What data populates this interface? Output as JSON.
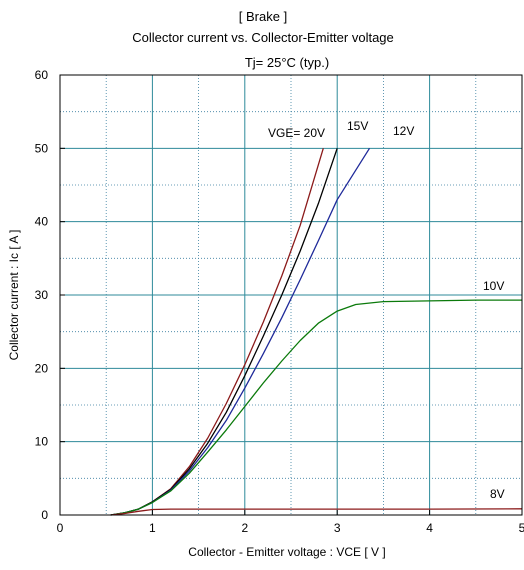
{
  "chart_data": {
    "type": "line",
    "title_lines": [
      "[ Brake ]",
      "Collector current  vs.  Collector-Emitter voltage"
    ],
    "condition": "Tj= 25°C  (typ.)",
    "xlabel": "Collector - Emitter voltage  :  VCE  [ V ]",
    "ylabel": "Collector current  :  Ic  [ A ]",
    "xlim": [
      0,
      5
    ],
    "ylim": [
      0,
      60
    ],
    "x_ticks": [
      "0",
      "1",
      "2",
      "3",
      "4",
      "5"
    ],
    "y_ticks": [
      "0",
      "10",
      "20",
      "30",
      "40",
      "50",
      "60"
    ],
    "grid": true,
    "series": [
      {
        "name": "VGE= 20V",
        "color": "#8b1a1a",
        "points": [
          [
            0.55,
            0
          ],
          [
            0.7,
            0.3
          ],
          [
            0.85,
            0.8
          ],
          [
            1.0,
            1.8
          ],
          [
            1.2,
            3.6
          ],
          [
            1.4,
            6.6
          ],
          [
            1.6,
            10.5
          ],
          [
            1.8,
            15.2
          ],
          [
            2.0,
            20.5
          ],
          [
            2.2,
            26.3
          ],
          [
            2.4,
            32.6
          ],
          [
            2.6,
            39.5
          ],
          [
            2.85,
            50
          ]
        ]
      },
      {
        "name": "15V",
        "color": "#000000",
        "points": [
          [
            0.55,
            0
          ],
          [
            0.7,
            0.3
          ],
          [
            0.85,
            0.8
          ],
          [
            1.0,
            1.8
          ],
          [
            1.2,
            3.5
          ],
          [
            1.4,
            6.3
          ],
          [
            1.6,
            9.8
          ],
          [
            1.8,
            14.0
          ],
          [
            2.0,
            19.0
          ],
          [
            2.2,
            24.4
          ],
          [
            2.4,
            30.0
          ],
          [
            2.6,
            36.0
          ],
          [
            2.8,
            42.6
          ],
          [
            3.0,
            50
          ]
        ]
      },
      {
        "name": "12V",
        "color": "#1f2a9a",
        "points": [
          [
            0.55,
            0
          ],
          [
            0.7,
            0.3
          ],
          [
            0.85,
            0.8
          ],
          [
            1.0,
            1.7
          ],
          [
            1.2,
            3.4
          ],
          [
            1.4,
            6.0
          ],
          [
            1.6,
            9.2
          ],
          [
            1.8,
            12.9
          ],
          [
            2.0,
            17.3
          ],
          [
            2.2,
            22.0
          ],
          [
            2.4,
            26.9
          ],
          [
            2.6,
            32.1
          ],
          [
            2.8,
            37.5
          ],
          [
            3.0,
            43.0
          ],
          [
            3.35,
            50
          ]
        ]
      },
      {
        "name": "10V",
        "color": "#0b7a0b",
        "points": [
          [
            0.55,
            0
          ],
          [
            0.7,
            0.3
          ],
          [
            0.85,
            0.8
          ],
          [
            1.0,
            1.7
          ],
          [
            1.2,
            3.3
          ],
          [
            1.4,
            5.7
          ],
          [
            1.6,
            8.6
          ],
          [
            1.8,
            11.6
          ],
          [
            2.0,
            14.8
          ],
          [
            2.2,
            18.0
          ],
          [
            2.4,
            21.0
          ],
          [
            2.6,
            23.8
          ],
          [
            2.8,
            26.2
          ],
          [
            3.0,
            27.8
          ],
          [
            3.2,
            28.7
          ],
          [
            3.5,
            29.1
          ],
          [
            4.0,
            29.2
          ],
          [
            4.5,
            29.3
          ],
          [
            5.0,
            29.3
          ]
        ]
      },
      {
        "name": "8V",
        "color": "#8b1a1a",
        "points": [
          [
            0.55,
            0
          ],
          [
            0.7,
            0.2
          ],
          [
            0.85,
            0.5
          ],
          [
            1.0,
            0.75
          ],
          [
            1.2,
            0.8
          ],
          [
            2.0,
            0.8
          ],
          [
            3.0,
            0.8
          ],
          [
            4.0,
            0.8
          ],
          [
            5.0,
            0.85
          ]
        ]
      }
    ]
  }
}
